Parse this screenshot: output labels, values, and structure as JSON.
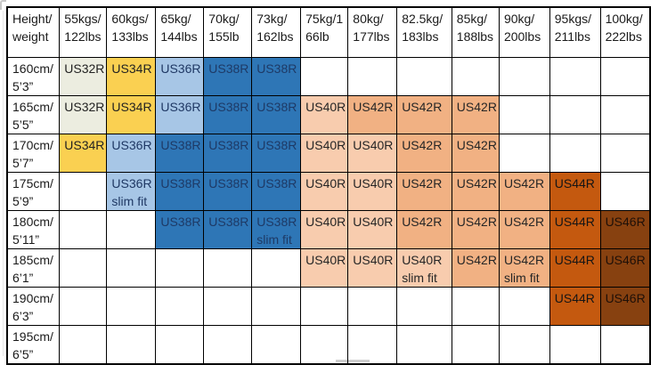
{
  "colors": {
    "us32": {
      "bg": "#ECEDE0",
      "fg": "#222222"
    },
    "us34": {
      "bg": "#FAD051",
      "fg": "#222222"
    },
    "us36": {
      "bg": "#A7C6E6",
      "fg": "#1F3864"
    },
    "us38": {
      "bg": "#2E76B6",
      "fg": "#1E3A66"
    },
    "us40": {
      "bg": "#F8CCAE",
      "fg": "#262626"
    },
    "us42": {
      "bg": "#F1B183",
      "fg": "#262626"
    },
    "us44": {
      "bg": "#C4590F",
      "fg": "#151515"
    },
    "us46": {
      "bg": "#874110",
      "fg": "#1F1008"
    },
    "border": "#000000"
  },
  "table": {
    "header": [
      "Height/\nweight",
      "55kgs/\n122lbs",
      "60kgs/\n133lbs",
      "65kg/\n144lbs",
      "70kg/\n155lb",
      "73kg/\n162lbs",
      "75kg/1\n66lb",
      "80kg/\n177lbs",
      "82.5kg/\n183lbs",
      "85kg/\n188lbs",
      "90kg/\n200lbs",
      "95kgs/\n211lbs",
      "100kg/\n222lbs"
    ],
    "rows": [
      {
        "label": "160cm/\n5’3”",
        "cells": [
          {
            "text": "US32R",
            "fill": "us32"
          },
          {
            "text": "US34R",
            "fill": "us34"
          },
          {
            "text": "US36R",
            "fill": "us36"
          },
          {
            "text": "US38R",
            "fill": "us38"
          },
          {
            "text": "US38R",
            "fill": "us38"
          },
          {
            "text": "",
            "fill": ""
          },
          {
            "text": "",
            "fill": ""
          },
          {
            "text": "",
            "fill": ""
          },
          {
            "text": "",
            "fill": ""
          },
          {
            "text": "",
            "fill": ""
          },
          {
            "text": "",
            "fill": ""
          },
          {
            "text": "",
            "fill": ""
          }
        ]
      },
      {
        "label": "165cm/\n5’5”",
        "cells": [
          {
            "text": "US32R",
            "fill": "us32"
          },
          {
            "text": "US34R",
            "fill": "us34"
          },
          {
            "text": "US36R",
            "fill": "us36"
          },
          {
            "text": "US38R",
            "fill": "us38"
          },
          {
            "text": "US38R",
            "fill": "us38"
          },
          {
            "text": "US40R",
            "fill": "us40"
          },
          {
            "text": "US42R",
            "fill": "us42"
          },
          {
            "text": "US42R",
            "fill": "us42"
          },
          {
            "text": "US42R",
            "fill": "us42"
          },
          {
            "text": "",
            "fill": ""
          },
          {
            "text": "",
            "fill": ""
          },
          {
            "text": "",
            "fill": ""
          }
        ]
      },
      {
        "label": "170cm/\n5’7”",
        "cells": [
          {
            "text": "US34R",
            "fill": "us34"
          },
          {
            "text": "US36R",
            "fill": "us36"
          },
          {
            "text": "US38R",
            "fill": "us38"
          },
          {
            "text": "US38R",
            "fill": "us38"
          },
          {
            "text": "US38R",
            "fill": "us38"
          },
          {
            "text": "US40R",
            "fill": "us40"
          },
          {
            "text": "US40R",
            "fill": "us40"
          },
          {
            "text": "US42R",
            "fill": "us42"
          },
          {
            "text": "US42R",
            "fill": "us42"
          },
          {
            "text": "",
            "fill": ""
          },
          {
            "text": "",
            "fill": ""
          },
          {
            "text": "",
            "fill": ""
          }
        ]
      },
      {
        "label": "175cm/\n5’9”",
        "cells": [
          {
            "text": "",
            "fill": ""
          },
          {
            "text": "US36R\nslim fit",
            "fill": "us36"
          },
          {
            "text": "US38R",
            "fill": "us38"
          },
          {
            "text": "US38R",
            "fill": "us38"
          },
          {
            "text": "US38R",
            "fill": "us38"
          },
          {
            "text": "US40R",
            "fill": "us40"
          },
          {
            "text": "US40R",
            "fill": "us40"
          },
          {
            "text": "US42R",
            "fill": "us42"
          },
          {
            "text": "US42R",
            "fill": "us42"
          },
          {
            "text": "US42R",
            "fill": "us42"
          },
          {
            "text": "US44R",
            "fill": "us44"
          },
          {
            "text": "",
            "fill": ""
          }
        ]
      },
      {
        "label": "180cm/\n5’11”",
        "cells": [
          {
            "text": "",
            "fill": ""
          },
          {
            "text": "",
            "fill": ""
          },
          {
            "text": "US38R",
            "fill": "us38"
          },
          {
            "text": "US38R",
            "fill": "us38"
          },
          {
            "text": "US38R\nslim fit",
            "fill": "us38"
          },
          {
            "text": "US40R",
            "fill": "us40"
          },
          {
            "text": "US40R",
            "fill": "us40"
          },
          {
            "text": "US42R",
            "fill": "us42"
          },
          {
            "text": "US42R",
            "fill": "us42"
          },
          {
            "text": "US42R",
            "fill": "us42"
          },
          {
            "text": "US44R",
            "fill": "us44"
          },
          {
            "text": "US46R",
            "fill": "us46"
          }
        ]
      },
      {
        "label": "185cm/\n6’1”",
        "cells": [
          {
            "text": "",
            "fill": ""
          },
          {
            "text": "",
            "fill": ""
          },
          {
            "text": "",
            "fill": ""
          },
          {
            "text": "",
            "fill": ""
          },
          {
            "text": "",
            "fill": ""
          },
          {
            "text": "US40R",
            "fill": "us40"
          },
          {
            "text": "US40R",
            "fill": "us40"
          },
          {
            "text": "US40R\nslim fit",
            "fill": "us40"
          },
          {
            "text": "US42R",
            "fill": "us42"
          },
          {
            "text": "US42R\nslim fit",
            "fill": "us42"
          },
          {
            "text": "US44R",
            "fill": "us44"
          },
          {
            "text": "US46R",
            "fill": "us46"
          }
        ]
      },
      {
        "label": "190cm/\n6’3”",
        "cells": [
          {
            "text": "",
            "fill": ""
          },
          {
            "text": "",
            "fill": ""
          },
          {
            "text": "",
            "fill": ""
          },
          {
            "text": "",
            "fill": ""
          },
          {
            "text": "",
            "fill": ""
          },
          {
            "text": "",
            "fill": ""
          },
          {
            "text": "",
            "fill": ""
          },
          {
            "text": "",
            "fill": ""
          },
          {
            "text": "",
            "fill": ""
          },
          {
            "text": "",
            "fill": ""
          },
          {
            "text": "US44R",
            "fill": "us44"
          },
          {
            "text": "US46R",
            "fill": "us46"
          }
        ]
      },
      {
        "label": "195cm/\n6’5”",
        "cells": [
          {
            "text": "",
            "fill": ""
          },
          {
            "text": "",
            "fill": ""
          },
          {
            "text": "",
            "fill": ""
          },
          {
            "text": "",
            "fill": ""
          },
          {
            "text": "",
            "fill": ""
          },
          {
            "text": "",
            "fill": ""
          },
          {
            "text": "",
            "fill": ""
          },
          {
            "text": "",
            "fill": ""
          },
          {
            "text": "",
            "fill": ""
          },
          {
            "text": "",
            "fill": ""
          },
          {
            "text": "",
            "fill": ""
          },
          {
            "text": "",
            "fill": ""
          }
        ]
      }
    ]
  }
}
